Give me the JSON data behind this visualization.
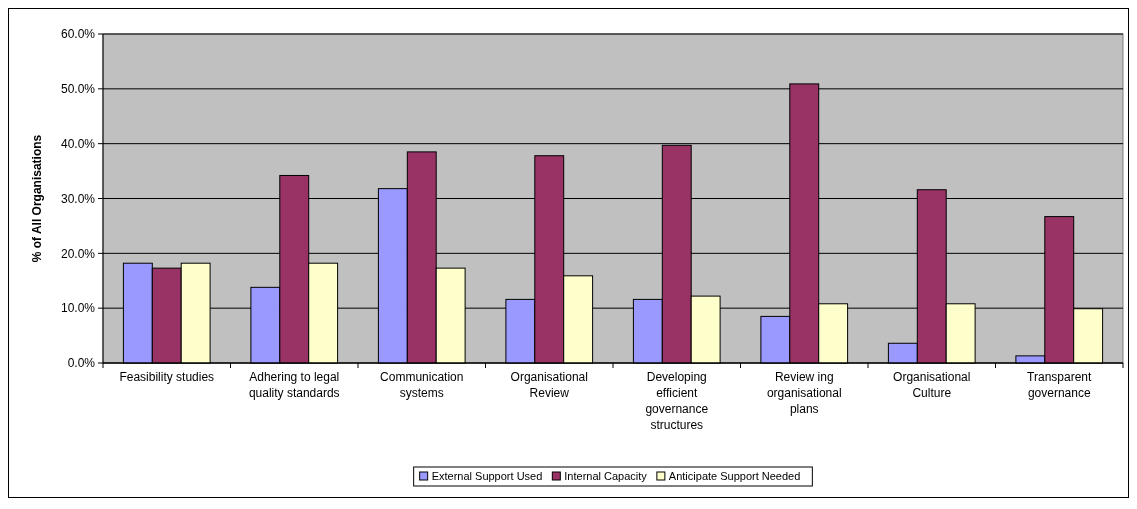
{
  "chart_data": {
    "type": "bar",
    "ylabel": "% of All Organisations",
    "categories": [
      "Feasibility studies",
      "Adhering to legal quality standards",
      "Communication systems",
      "Organisational Review",
      "Developing efficient governance structures",
      "Review ing organisational plans",
      "Organisational Culture",
      "Transparent governance"
    ],
    "series": [
      {
        "name": "External Support Used",
        "color": "#9999ff",
        "values": [
          18.2,
          13.8,
          31.8,
          11.6,
          11.6,
          8.5,
          3.6,
          1.3
        ]
      },
      {
        "name": "Internal Capacity",
        "color": "#993366",
        "values": [
          17.3,
          34.2,
          38.5,
          37.8,
          39.7,
          50.9,
          31.6,
          26.7
        ]
      },
      {
        "name": "Anticipate Support Needed",
        "color": "#ffffcc",
        "values": [
          18.2,
          18.2,
          17.3,
          15.9,
          12.2,
          10.8,
          10.8,
          9.9
        ]
      }
    ],
    "ylim": [
      0,
      60
    ],
    "yticks": [
      {
        "value": 0,
        "label": "0.0%"
      },
      {
        "value": 10,
        "label": "10.0%"
      },
      {
        "value": 20,
        "label": "20.0%"
      },
      {
        "value": 30,
        "label": "30.0%"
      },
      {
        "value": 40,
        "label": "40.0%"
      },
      {
        "value": 50,
        "label": "50.0%"
      },
      {
        "value": 60,
        "label": "60.0%"
      }
    ],
    "grid": "y",
    "legend": "bottom"
  }
}
